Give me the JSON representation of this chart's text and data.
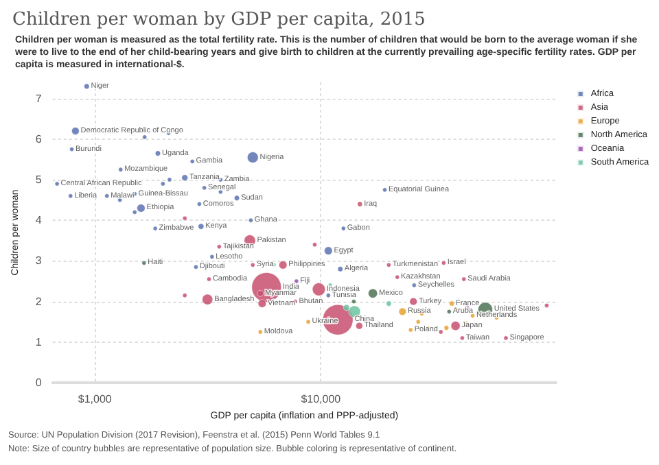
{
  "chart_data": {
    "type": "bubble",
    "title": "Children per woman by GDP per capita, 2015",
    "subtitle": "Children per woman is measured as the total fertility rate. This is the number of children that would be born to the average woman if she were to live to the end of her child-bearing years and give birth to children at the currently prevailing age-specific fertility rates. GDP per capita is measured in international-$.",
    "xlabel": "GDP per capita (inflation and PPP-adjusted)",
    "ylabel": "Children per woman",
    "log": "x",
    "xlim": [
      650,
      110000
    ],
    "xticks": [
      {
        "value": 1000,
        "label": "$1,000"
      },
      {
        "value": 10000,
        "label": "$10,000"
      }
    ],
    "ylim": [
      0,
      7.4
    ],
    "yticks": [
      0,
      1,
      2,
      3,
      4,
      5,
      6,
      7
    ],
    "grid": true,
    "legend": "right",
    "annotations": [
      "Source: UN Population Division (2017 Revision), Feenstra et al. (2015) Penn World Tables 9.1",
      "Note: Size of country bubbles are representative of population size. Bubble coloring is representative of continent."
    ],
    "series": [
      {
        "name": "Africa",
        "color": "#5b72b0",
        "x": [
          920,
          820,
          790,
          1900,
          2700,
          5000,
          1300,
          680,
          2500,
          3600,
          3050,
          4250,
          780,
          1130,
          1500,
          1600,
          2900,
          2950,
          1850,
          4900,
          3300,
          2800,
          10800,
          12200,
          12600,
          19200,
          10800,
          25900,
          1660,
          2120,
          2140,
          2000,
          1500,
          1290,
          3600
        ],
        "values": [
          7.3,
          6.2,
          5.75,
          5.65,
          5.45,
          5.55,
          5.25,
          4.9,
          5.05,
          5.0,
          4.8,
          4.55,
          4.6,
          4.6,
          4.65,
          4.3,
          4.4,
          3.85,
          3.8,
          4.0,
          3.1,
          2.85,
          3.25,
          2.8,
          3.8,
          4.75,
          2.15,
          2.4,
          6.05,
          6.15,
          5.0,
          4.9,
          4.2,
          4.5,
          4.7
        ],
        "sizes": [
          0.03,
          0.06,
          0.02,
          0.03,
          0.02,
          0.13,
          0.02,
          0.02,
          0.04,
          0.02,
          0.02,
          0.03,
          0.02,
          0.02,
          0.02,
          0.07,
          0.02,
          0.035,
          0.02,
          0.02,
          0.02,
          0.02,
          0.07,
          0.03,
          0.02,
          0.02,
          0.02,
          0.02,
          0.02,
          0.02,
          0.02,
          0.02,
          0.02,
          0.02,
          0.02
        ],
        "value_labels": [
          "Niger",
          "Democratic Republic of Congo",
          "Burundi",
          "Uganda",
          "Gambia",
          "Nigeria",
          "Mozambique",
          "Central African Republic",
          "Tanzania",
          "Zambia",
          "Senegal",
          "Sudan",
          "Liberia",
          "Malawi",
          "Guinea-Bissau",
          "Ethiopia",
          "Comoros",
          "Kenya",
          "Zimbabwe",
          "Ghana",
          "Lesotho",
          "Djibouti",
          "Egypt",
          "Algeria",
          "Gabon",
          "Equatorial Guinea",
          "Tunisia",
          "Seychelles",
          null,
          null,
          null,
          null,
          null,
          null,
          null
        ]
      },
      {
        "name": "Asia",
        "color": "#c8506f",
        "x": [
          4850,
          3550,
          5000,
          6800,
          5750,
          5400,
          5500,
          3200,
          3150,
          7700,
          9800,
          11900,
          14800,
          14900,
          20000,
          21800,
          35000,
          43000,
          25700,
          39500,
          42300,
          66000,
          2500,
          2500,
          9400,
          100000,
          34000
        ],
        "values": [
          3.5,
          3.35,
          2.9,
          2.9,
          2.35,
          2.2,
          1.95,
          2.55,
          2.05,
          2.0,
          2.3,
          1.55,
          1.4,
          4.4,
          2.9,
          2.6,
          2.95,
          2.55,
          2.0,
          1.4,
          1.1,
          1.1,
          2.15,
          4.05,
          3.4,
          1.9,
          1.25
        ],
        "sizes": [
          0.14,
          0.02,
          0.02,
          0.07,
          0.95,
          0.04,
          0.07,
          0.02,
          0.12,
          0.02,
          0.18,
          1,
          0.05,
          0.027,
          0.02,
          0.02,
          0.02,
          0.02,
          0.06,
          0.09,
          0.02,
          0.02,
          0.02,
          0.02,
          0.02,
          0.02,
          0.02
        ],
        "value_labels": [
          "Pakistan",
          "Tajikistan",
          "Syria",
          "Philippines",
          "India",
          "Myanmar",
          "Vietnam",
          "Cambodia",
          "Bangladesh",
          "Bhutan",
          "Indonesia",
          "China",
          "Thailand",
          "Iraq",
          "Turkmenistan",
          "Kazakhstan",
          "Israel",
          "Saudi Arabia",
          "Turkey",
          "Japan",
          "Taiwan",
          "Singapore",
          null,
          null,
          null,
          null,
          null
        ]
      },
      {
        "name": "Europe",
        "color": "#e6a130",
        "x": [
          8800,
          5400,
          23000,
          25000,
          38000,
          47000,
          18000,
          20000,
          27000,
          30000,
          36000,
          44000,
          40000,
          60000,
          15000,
          28000
        ],
        "values": [
          1.5,
          1.25,
          1.75,
          1.3,
          1.95,
          1.65,
          1.45,
          1.4,
          1.5,
          1.35,
          1.35,
          1.45,
          1.8,
          1.6,
          1.6,
          1.7
        ],
        "sizes": [
          0.02,
          0.02,
          0.06,
          0.02,
          0.028,
          0.02,
          0.02,
          0.02,
          0.02,
          0.02,
          0.025,
          0.03,
          0.02,
          0.02,
          0.02,
          0.02
        ],
        "value_labels": [
          "Ukraine",
          "Moldova",
          "Russia",
          "Poland",
          "France",
          "Netherlands",
          null,
          null,
          null,
          null,
          null,
          null,
          null,
          null,
          null,
          null
        ]
      },
      {
        "name": "North America",
        "color": "#4d7355",
        "x": [
          53500,
          17000,
          1650,
          37000,
          14000
        ],
        "values": [
          1.8,
          2.2,
          2.95,
          1.75,
          2.0
        ],
        "sizes": [
          0.23,
          0.09,
          0.02,
          0.02,
          0.02
        ],
        "value_labels": [
          "United States",
          "Mexico",
          "Haiti",
          "Aruba",
          null
        ]
      },
      {
        "name": "Oceania",
        "color": "#9b4fb0",
        "x": [
          7800,
          45000,
          44500
        ],
        "values": [
          2.5,
          1.8,
          1.9
        ],
        "sizes": [
          0.02,
          0.02,
          0.02
        ],
        "value_labels": [
          "Fiji",
          null,
          null
        ]
      },
      {
        "name": "South America",
        "color": "#6bc3a0",
        "x": [
          14100,
          13000,
          7300,
          11000,
          20000,
          6200
        ],
        "values": [
          1.75,
          1.85,
          2.3,
          2.4,
          1.95,
          2.9
        ],
        "sizes": [
          0.15,
          0.04,
          0.02,
          0.02,
          0.03,
          0.02
        ],
        "value_labels": [
          null,
          null,
          null,
          null,
          null,
          null
        ]
      }
    ]
  }
}
